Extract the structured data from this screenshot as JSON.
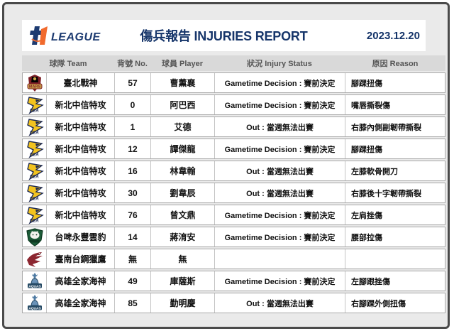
{
  "page": {
    "frame_border_color": "#4a4a4a",
    "inner_bg": "#eaeaea",
    "accent_navy": "#16356a",
    "accent_orange": "#f16a2d",
    "header_row_bg": "#d9d9d9"
  },
  "header": {
    "league_logo": "t1-league-logo",
    "league_wordmark": "LEAGUE",
    "title": "傷兵報告 INJURIES REPORT",
    "date": "2023.12.20"
  },
  "table": {
    "columns": [
      {
        "key": "team",
        "label": "球隊 Team"
      },
      {
        "key": "no",
        "label": "背號 No."
      },
      {
        "key": "player",
        "label": "球員 Player"
      },
      {
        "key": "status",
        "label": "狀況 Injury Status"
      },
      {
        "key": "reason",
        "label": "原因 Reason"
      }
    ],
    "rows": [
      {
        "logo": "mars-logo",
        "team": "臺北戰神",
        "no": "57",
        "player": "曹薰襄",
        "status": "Gametime Decision : 賽前決定",
        "reason": "腳踝扭傷"
      },
      {
        "logo": "dea-logo",
        "team": "新北中信特攻",
        "no": "0",
        "player": "阿巴西",
        "status": "Gametime Decision : 賽前決定",
        "reason": "嘴唇撕裂傷"
      },
      {
        "logo": "dea-logo",
        "team": "新北中信特攻",
        "no": "1",
        "player": "艾德",
        "status": "Out : 當週無法出賽",
        "reason": "右膝內側副韌帶撕裂"
      },
      {
        "logo": "dea-logo",
        "team": "新北中信特攻",
        "no": "12",
        "player": "譚傑龍",
        "status": "Gametime Decision : 賽前決定",
        "reason": "腳踝扭傷"
      },
      {
        "logo": "dea-logo",
        "team": "新北中信特攻",
        "no": "16",
        "player": "林韋翰",
        "status": "Out : 當週無法出賽",
        "reason": "左膝軟骨開刀"
      },
      {
        "logo": "dea-logo",
        "team": "新北中信特攻",
        "no": "30",
        "player": "劉韋辰",
        "status": "Out : 當週無法出賽",
        "reason": "右膝後十字韌帶撕裂"
      },
      {
        "logo": "dea-logo",
        "team": "新北中信特攻",
        "no": "76",
        "player": "曾文鼎",
        "status": "Gametime Decision : 賽前決定",
        "reason": "左肩挫傷"
      },
      {
        "logo": "leopards-logo",
        "team": "台啤永豐雲豹",
        "no": "14",
        "player": "蔣淯安",
        "status": "Gametime Decision : 賽前決定",
        "reason": "腰部拉傷"
      },
      {
        "logo": "ghosthawks-logo",
        "team": "臺南台鋼獵鷹",
        "no": "無",
        "player": "無",
        "status": "",
        "reason": ""
      },
      {
        "logo": "aquas-logo",
        "team": "高雄全家海神",
        "no": "49",
        "player": "庫薩斯",
        "status": "Gametime Decision : 賽前決定",
        "reason": "左腳跟挫傷"
      },
      {
        "logo": "aquas-logo",
        "team": "高雄全家海神",
        "no": "85",
        "player": "勤明慶",
        "status": "Out : 當週無法出賽",
        "reason": "右腳踝外側扭傷"
      }
    ]
  }
}
